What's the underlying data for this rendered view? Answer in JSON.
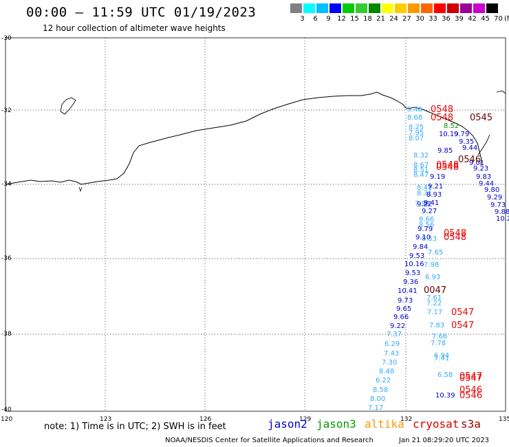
{
  "header": {
    "title": "00:00 – 11:59 UTC 01/19/2023",
    "subtitle": "12 hour collection of altimeter wave heights"
  },
  "color_scale": {
    "labels": [
      "3",
      "6",
      "9",
      "12",
      "15",
      "18",
      "21",
      "24",
      "27",
      "30",
      "33",
      "36",
      "39",
      "42",
      "45",
      "70"
    ],
    "unit": "(ft)",
    "colors": [
      "#808080",
      "#00ffff",
      "#00bfff",
      "#0000ff",
      "#00cc00",
      "#33cc33",
      "#008800",
      "#ffff00",
      "#ffcc00",
      "#ff9900",
      "#ff6600",
      "#ff0000",
      "#cc0000",
      "#990099",
      "#cc00cc",
      "#000000"
    ]
  },
  "axes": {
    "lat_labels": [
      "-30",
      "-32",
      "-34",
      "-36",
      "-38",
      "-40"
    ],
    "lon_labels": [
      "120",
      "123",
      "126",
      "129",
      "132",
      "135"
    ]
  },
  "footer": {
    "note": "note:  1) Time is in UTC;  2) SWH is in feet",
    "satellites": [
      {
        "name": "jason2",
        "color": "#0000cc"
      },
      {
        "name": "jason3",
        "color": "#009900"
      },
      {
        "name": "altika",
        "color": "#ff9900"
      },
      {
        "name": "cryosat",
        "color": "#dd0000"
      },
      {
        "name": "s3a",
        "color": "#990000"
      }
    ],
    "credit": "NOAA/NESDIS Center for Satellite Applications and Research",
    "timestamp": "Jan 21 08:29:20 UTC 2023"
  },
  "tracks": {
    "light_blue": [
      "9.46",
      "8.68",
      "8.25",
      "7.95",
      "8.07",
      "8.32",
      "8.67",
      "8.51",
      "8.47",
      "8.41",
      "8.31",
      "7.99",
      "8.66",
      "8.56",
      "8.53",
      "7.65",
      "7.98",
      "6.93",
      "7.61",
      "7.22",
      "7.17",
      "7.83",
      "7.66",
      "7.78",
      "7.37",
      "6.29",
      "7.43",
      "7.30",
      "8.48",
      "6.22",
      "8.58",
      "8.00",
      "7.17",
      "6.94",
      "7.41",
      "6.58"
    ],
    "dark_blue": [
      "10.19",
      "9.79",
      "9.35",
      "9.44",
      "9.01",
      "9.23",
      "9.83",
      "9.44",
      "9.80",
      "9.29",
      "9.73",
      "9.88",
      "10.2",
      "9.85",
      "9.19",
      "9.21",
      "8.93",
      "9.22",
      "9.41",
      "9.27",
      "9.79",
      "9.10",
      "9.84",
      "9.53",
      "10.16",
      "9.53",
      "9.36",
      "10.41",
      "9.73",
      "9.65",
      "9.66",
      "9.22",
      "10.39"
    ],
    "green": [
      "8.52"
    ],
    "time_labels_red": [
      "0548",
      "0548",
      "0548",
      "0548",
      "0548",
      "0548",
      "0547",
      "0547",
      "0547",
      "0547",
      "0546",
      "0546"
    ],
    "time_labels_dark": [
      "0545",
      "0546",
      "0047"
    ]
  }
}
